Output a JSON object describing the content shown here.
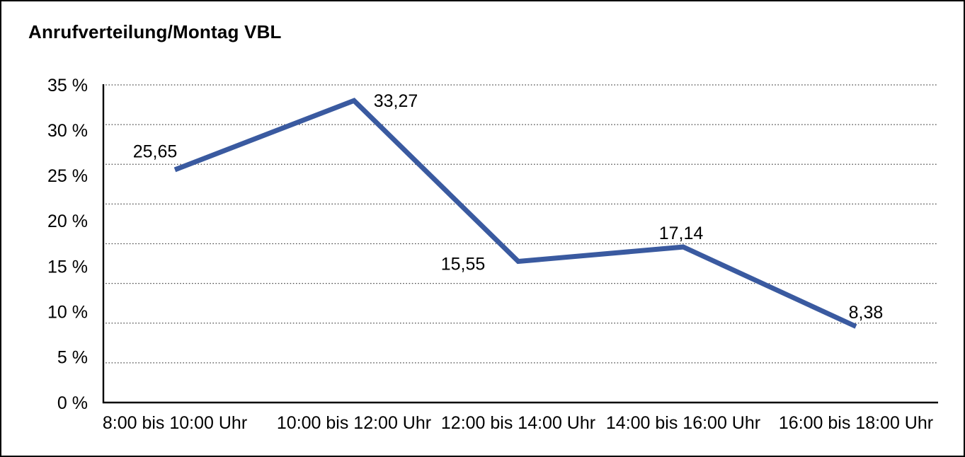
{
  "window": {
    "background": "#ffffff",
    "border_color": "#000000"
  },
  "chart_data": {
    "type": "line",
    "title": "Anrufverteilung/Montag VBL",
    "categories": [
      "8:00 bis 10:00 Uhr",
      "10:00 bis 12:00 Uhr",
      "12:00 bis 14:00 Uhr",
      "14:00 bis 16:00 Uhr",
      "16:00 bis 18:00 Uhr"
    ],
    "values": [
      25.65,
      33.27,
      15.55,
      17.14,
      8.38
    ],
    "value_labels": [
      "25,65",
      "33,27",
      "15,55",
      "17,14",
      "8,38"
    ],
    "xlabel": "",
    "ylabel": "",
    "ylim": [
      0,
      35
    ],
    "ytick_step": 5,
    "ytick_labels": [
      "0 %",
      "5 %",
      "10 %",
      "15 %",
      "20 %",
      "25 %",
      "30 %",
      "35 %"
    ],
    "grid": "horizontal-dotted",
    "grid_divisions": 8,
    "legend": "none",
    "line_color": "#3a5aa0",
    "axis_color": "#000000",
    "gridline_color": "#4a4a4a"
  }
}
